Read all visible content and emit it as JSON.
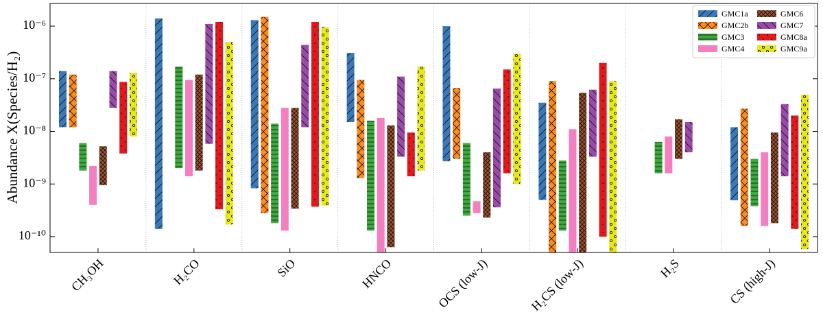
{
  "chart_data": {
    "type": "range-bar",
    "ylabel": "Abundance X(Species/H₂)",
    "categories": [
      "CH₃OH",
      "H₂CO",
      "SiO",
      "HNCO",
      "OCS (low-J)",
      "H₂CS (low-J)",
      "H₂S",
      "CS (high-J)"
    ],
    "log_y": true,
    "ylim": [
      5e-11,
      2.7e-06
    ],
    "yticks": [
      {
        "value": 1e-10,
        "label": "10⁻¹⁰"
      },
      {
        "value": 1e-09,
        "label": "10⁻⁹"
      },
      {
        "value": 1e-08,
        "label": "10⁻⁸"
      },
      {
        "value": 1e-07,
        "label": "10⁻⁷"
      },
      {
        "value": 1e-06,
        "label": "10⁻⁶"
      }
    ],
    "legend": "upper right",
    "series": [
      {
        "name": "GMC1a",
        "color": "#3a78b8",
        "hatch": "/",
        "low": [
          1.2e-08,
          1.4e-10,
          8.3e-10,
          1.5e-08,
          2.7e-09,
          5e-10,
          null,
          4.9e-10
        ],
        "high": [
          1.4e-07,
          1.4e-06,
          1.3e-06,
          3.1e-07,
          1e-06,
          3.5e-08,
          null,
          1.2e-08
        ]
      },
      {
        "name": "GMC2b",
        "color": "#ff8a1f",
        "hatch": "x",
        "low": [
          1.2e-08,
          null,
          2.8e-10,
          1.3e-09,
          3e-09,
          4e-11,
          null,
          1.6e-10
        ],
        "high": [
          1.2e-07,
          null,
          1.5e-06,
          9.5e-08,
          6.7e-08,
          9e-08,
          null,
          2.7e-08
        ]
      },
      {
        "name": "GMC3",
        "color": "#3caa3c",
        "hatch": "-",
        "low": [
          1.8e-09,
          2e-09,
          1.8e-10,
          1.3e-10,
          2.5e-10,
          1.3e-10,
          1.6e-09,
          3.8e-10
        ],
        "high": [
          6e-09,
          1.7e-07,
          1.4e-08,
          1.6e-08,
          6e-09,
          2.8e-09,
          6.3e-09,
          3e-09
        ]
      },
      {
        "name": "GMC4",
        "color": "#f47fc0",
        "hatch": "",
        "low": [
          4e-10,
          1.4e-09,
          1.3e-10,
          4e-11,
          2.8e-10,
          4e-11,
          1.6e-09,
          1.6e-10
        ],
        "high": [
          2.2e-09,
          9.5e-08,
          2.8e-08,
          1.8e-08,
          4.7e-10,
          1.1e-08,
          8e-09,
          4e-09
        ]
      },
      {
        "name": "GMC6",
        "color": "#a0522d",
        "hatch": "xx",
        "low": [
          9.5e-10,
          1.8e-09,
          3.4e-10,
          6.3e-11,
          2.3e-10,
          4e-11,
          3e-09,
          1.8e-10
        ],
        "high": [
          5.2e-09,
          1.2e-07,
          2.8e-08,
          1.3e-08,
          4e-09,
          5.4e-08,
          1.7e-08,
          9.5e-09
        ]
      },
      {
        "name": "GMC7",
        "color": "#9a4aa8",
        "hatch": "\\",
        "low": [
          2.8e-08,
          5.8e-09,
          1.2e-08,
          3.3e-09,
          3.6e-10,
          3.3e-09,
          4e-09,
          1.4e-09
        ],
        "high": [
          1.4e-07,
          1.1e-06,
          4.4e-07,
          1.1e-07,
          6.5e-08,
          6.2e-08,
          1.5e-08,
          3.3e-08
        ]
      },
      {
        "name": "GMC8a",
        "color": "#e0191d",
        "hatch": ".",
        "low": [
          3.8e-09,
          3.3e-10,
          3.7e-10,
          1.4e-09,
          1.6e-09,
          1e-10,
          null,
          1.4e-10
        ],
        "high": [
          8.7e-08,
          1.2e-06,
          1.2e-06,
          9.5e-09,
          1.5e-07,
          2e-07,
          null,
          2e-08
        ]
      },
      {
        "name": "GMC9a",
        "color": "#e8e817",
        "hatch": "o",
        "low": [
          8e-09,
          1.7e-10,
          3.9e-10,
          1.8e-09,
          1e-09,
          4e-11,
          null,
          5.8e-11
        ],
        "high": [
          1.3e-07,
          5e-07,
          9.6e-07,
          1.7e-07,
          3e-07,
          9e-08,
          null,
          5e-08
        ]
      }
    ]
  }
}
